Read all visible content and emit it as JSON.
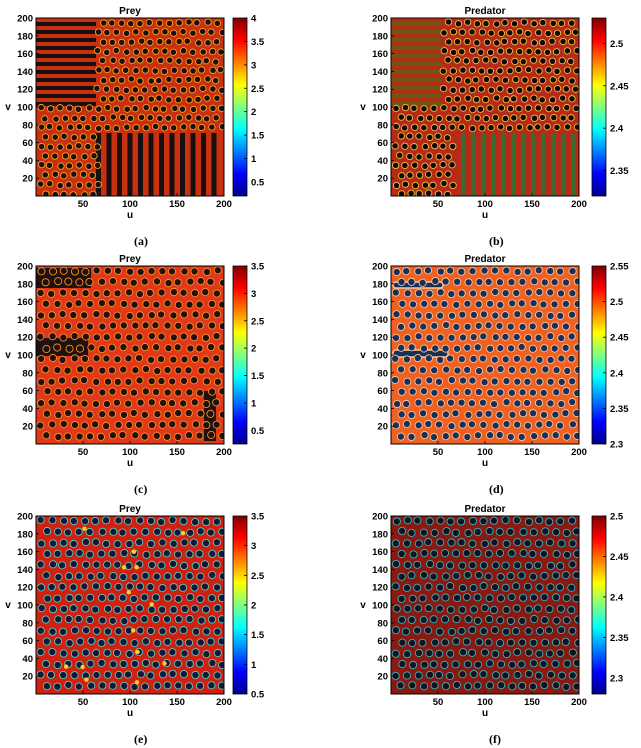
{
  "captions": [
    "(a)",
    "(b)",
    "(c)",
    "(d)",
    "(e)",
    "(f)"
  ],
  "chart_data": [
    {
      "type": "heatmap",
      "title": "Prey",
      "xlabel": "u",
      "ylabel": "v",
      "xticks": [
        50,
        100,
        150,
        200
      ],
      "yticks": [
        20,
        40,
        60,
        80,
        100,
        120,
        140,
        160,
        180,
        200
      ],
      "xlim": [
        0,
        200
      ],
      "ylim": [
        0,
        200
      ],
      "colorbar": {
        "min": 0.2,
        "max": 4,
        "ticks": [
          "0.5",
          "1",
          "1.5",
          "2",
          "2.5",
          "3",
          "3.5",
          "4"
        ],
        "values": [
          0.5,
          1,
          1.5,
          2,
          2.5,
          3,
          3.5,
          4
        ]
      },
      "pattern": "mixed stripes and spots"
    },
    {
      "type": "heatmap",
      "title": "Predator",
      "xlabel": "u",
      "ylabel": "v",
      "xticks": [
        50,
        100,
        150,
        200
      ],
      "yticks": [
        20,
        40,
        60,
        80,
        100,
        120,
        140,
        160,
        180,
        200
      ],
      "xlim": [
        0,
        200
      ],
      "ylim": [
        0,
        200
      ],
      "colorbar": {
        "min": 2.32,
        "max": 2.53,
        "ticks": [
          "2.35",
          "2.4",
          "2.45",
          "2.5"
        ],
        "values": [
          2.35,
          2.4,
          2.45,
          2.5
        ]
      },
      "pattern": "mixed stripes and spots"
    },
    {
      "type": "heatmap",
      "title": "Prey",
      "xlabel": "u",
      "ylabel": "v",
      "xticks": [
        50,
        100,
        150,
        200
      ],
      "yticks": [
        20,
        40,
        60,
        80,
        100,
        120,
        140,
        160,
        180,
        200
      ],
      "xlim": [
        0,
        200
      ],
      "ylim": [
        0,
        200
      ],
      "colorbar": {
        "min": 0.25,
        "max": 3.5,
        "ticks": [
          "0.5",
          "1",
          "1.5",
          "2",
          "2.5",
          "3",
          "3.5"
        ],
        "values": [
          0.5,
          1,
          1.5,
          2,
          2.5,
          3,
          3.5
        ]
      },
      "pattern": "spots with elongated stripes"
    },
    {
      "type": "heatmap",
      "title": "Predator",
      "xlabel": "u",
      "ylabel": "v",
      "xticks": [
        50,
        100,
        150,
        200
      ],
      "yticks": [
        20,
        40,
        60,
        80,
        100,
        120,
        140,
        160,
        180,
        200
      ],
      "xlim": [
        0,
        200
      ],
      "ylim": [
        0,
        200
      ],
      "colorbar": {
        "min": 2.3,
        "max": 2.55,
        "ticks": [
          "2.3",
          "2.35",
          "2.4",
          "2.45",
          "2.5",
          "2.55"
        ],
        "values": [
          2.3,
          2.35,
          2.4,
          2.45,
          2.5,
          2.55
        ]
      },
      "pattern": "spots with elongated stripes"
    },
    {
      "type": "heatmap",
      "title": "Prey",
      "xlabel": "u",
      "ylabel": "v",
      "xticks": [
        50,
        100,
        150,
        200
      ],
      "yticks": [
        20,
        40,
        60,
        80,
        100,
        120,
        140,
        160,
        180,
        200
      ],
      "xlim": [
        0,
        200
      ],
      "ylim": [
        0,
        200
      ],
      "colorbar": {
        "min": 0.5,
        "max": 3.5,
        "ticks": [
          "0.5",
          "1",
          "1.5",
          "2",
          "2.5",
          "3",
          "3.5"
        ],
        "values": [
          0.5,
          1,
          1.5,
          2,
          2.5,
          3,
          3.5
        ]
      },
      "pattern": "spots"
    },
    {
      "type": "heatmap",
      "title": "Predator",
      "xlabel": "u",
      "ylabel": "v",
      "xticks": [
        50,
        100,
        150,
        200
      ],
      "yticks": [
        20,
        40,
        60,
        80,
        100,
        120,
        140,
        160,
        180,
        200
      ],
      "xlim": [
        0,
        200
      ],
      "ylim": [
        0,
        200
      ],
      "colorbar": {
        "min": 2.28,
        "max": 2.5,
        "ticks": [
          "2.3",
          "2.35",
          "2.4",
          "2.45",
          "2.5"
        ],
        "values": [
          2.3,
          2.35,
          2.4,
          2.45,
          2.5
        ]
      },
      "pattern": "spots"
    }
  ]
}
